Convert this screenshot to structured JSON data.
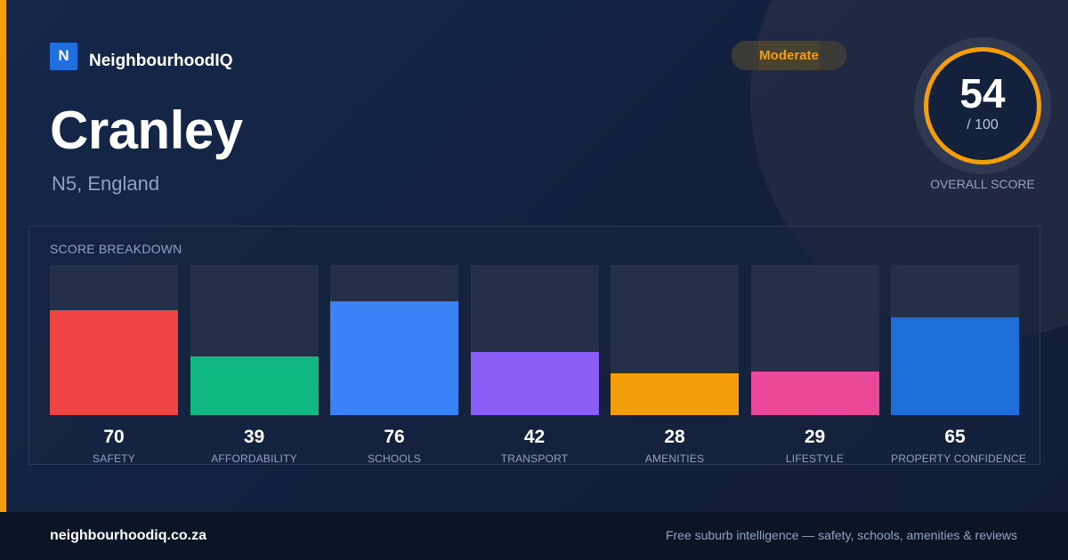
{
  "brand": {
    "logo_letter": "N",
    "name": "NeighbourhoodIQ"
  },
  "place": {
    "name": "Cranley",
    "subtitle": "N5, England"
  },
  "rating": {
    "label": "Moderate",
    "color": "#f59e0b"
  },
  "overall": {
    "value": "54",
    "max": "/ 100",
    "label": "OVERALL SCORE"
  },
  "breakdown": {
    "title": "SCORE BREAKDOWN",
    "items": [
      {
        "label": "SAFETY",
        "value": 70,
        "color": "#ef4444"
      },
      {
        "label": "AFFORDABILITY",
        "value": 39,
        "color": "#10b981"
      },
      {
        "label": "SCHOOLS",
        "value": 76,
        "color": "#3b82f6"
      },
      {
        "label": "TRANSPORT",
        "value": 42,
        "color": "#8b5cf6"
      },
      {
        "label": "AMENITIES",
        "value": 28,
        "color": "#f59e0b"
      },
      {
        "label": "LIFESTYLE",
        "value": 29,
        "color": "#ec4899"
      },
      {
        "label": "PROPERTY CONFIDENCE",
        "value": 65,
        "color": "#1d6ed8"
      }
    ]
  },
  "footer": {
    "domain": "neighbourhoodiq.co.za",
    "tagline": "Free suburb intelligence — safety, schools, amenities & reviews"
  }
}
